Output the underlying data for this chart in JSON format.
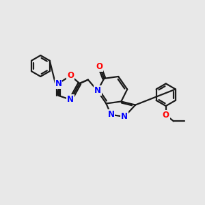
{
  "background_color": "#e8e8e8",
  "bond_color": "#1a1a1a",
  "nitrogen_color": "#0000ff",
  "oxygen_color": "#ff0000",
  "bond_width": 1.6,
  "font_size_atom": 8.5,
  "figsize": [
    3.0,
    3.0
  ],
  "dpi": 100,
  "xlim": [
    0,
    10
  ],
  "ylim": [
    0,
    10
  ]
}
